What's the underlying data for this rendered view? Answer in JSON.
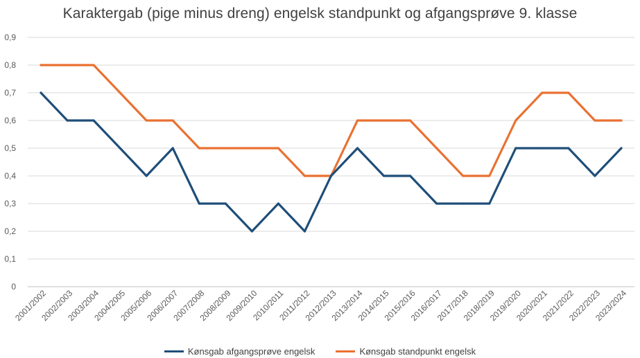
{
  "chart_data": {
    "type": "line",
    "title": "Karaktergab (pige minus dreng) engelsk standpunkt og afgangsprøve 9. klasse",
    "xlabel": "",
    "ylabel": "",
    "categories": [
      "2001/2002",
      "2002/2003",
      "2003/2004",
      "2004/2005",
      "2005/2006",
      "2006/2007",
      "2007/2008",
      "2008/2009",
      "2009/2010",
      "2010/2011",
      "2011/2012",
      "2012/2013",
      "2013/2014",
      "2014/2015",
      "2015/2016",
      "2016/2017",
      "2017/2018",
      "2018/2019",
      "2019/2020",
      "2020/2021",
      "2021/2022",
      "2022/2023",
      "2023/2024"
    ],
    "ylim": [
      0,
      0.9
    ],
    "yticks": [
      "0",
      "0,1",
      "0,2",
      "0,3",
      "0,4",
      "0,5",
      "0,6",
      "0,7",
      "0,8",
      "0,9"
    ],
    "grid": true,
    "legend_position": "bottom",
    "series": [
      {
        "name": "Kønsgab afgangsprøve engelsk",
        "color": "#1f4e79",
        "values": [
          0.7,
          0.6,
          0.6,
          0.5,
          0.4,
          0.5,
          0.3,
          0.3,
          0.2,
          0.3,
          0.2,
          0.4,
          0.5,
          0.4,
          0.4,
          0.3,
          0.3,
          0.3,
          0.5,
          0.5,
          0.5,
          0.4,
          0.5
        ]
      },
      {
        "name": "Kønsgab standpunkt engelsk",
        "color": "#e97132",
        "values": [
          0.8,
          0.8,
          0.8,
          0.7,
          0.6,
          0.6,
          0.5,
          0.5,
          0.5,
          0.5,
          0.4,
          0.4,
          0.6,
          0.6,
          0.6,
          0.5,
          0.4,
          0.4,
          0.6,
          0.7,
          0.7,
          0.6,
          0.6
        ]
      }
    ]
  }
}
